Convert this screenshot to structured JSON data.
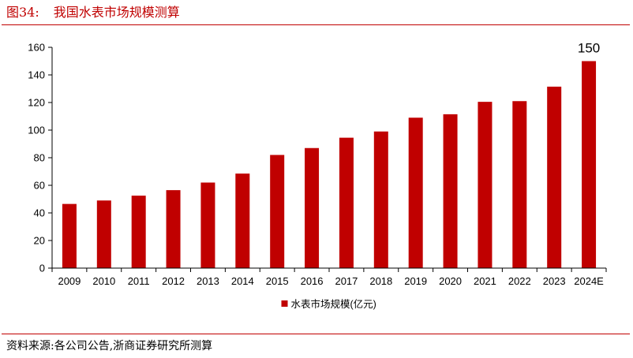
{
  "figure": {
    "label": "图34:",
    "title": "我国水表市场规模测算"
  },
  "source": {
    "text": "资料来源:各公司公告,浙商证券研究所测算"
  },
  "colors": {
    "accent": "#c00000",
    "bar": "#c00000",
    "axis": "#000000"
  },
  "chart_data": {
    "type": "bar",
    "categories": [
      "2009",
      "2010",
      "2011",
      "2012",
      "2013",
      "2014",
      "2015",
      "2016",
      "2017",
      "2018",
      "2019",
      "2020",
      "2021",
      "2022",
      "2023",
      "2024E"
    ],
    "series": [
      {
        "name": "水表市场规模(亿元)",
        "values": [
          46.5,
          49,
          52.5,
          56.5,
          62,
          68.5,
          82,
          87,
          94.5,
          99,
          109,
          111.5,
          120.5,
          121,
          131.5,
          150
        ]
      }
    ],
    "ylim": [
      0,
      160
    ],
    "yticks": [
      0,
      20,
      40,
      60,
      80,
      100,
      120,
      140,
      160
    ],
    "data_labels": [
      {
        "category": "2024E",
        "text": "150"
      }
    ],
    "grid": false,
    "legend": "bottom-center",
    "xlabel": "",
    "ylabel": ""
  }
}
